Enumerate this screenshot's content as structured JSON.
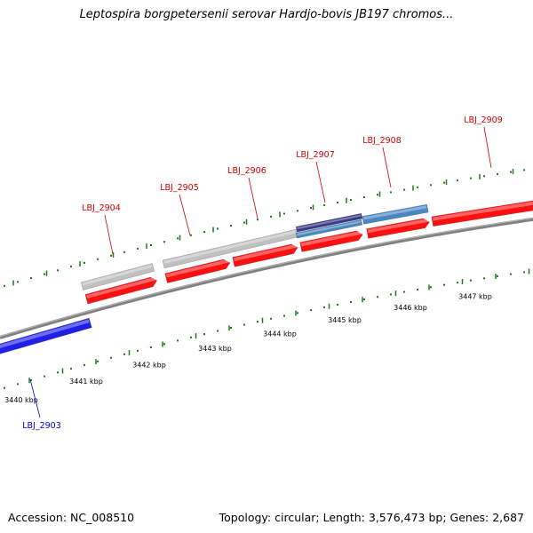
{
  "title": "Leptospira borgpetersenii serovar Hardjo-bovis JB197 chromos...",
  "footer": {
    "accession": "Accession: NC_008510",
    "topology": "Topology: circular; Length: 3,576,473 bp; Genes: 2,687"
  },
  "colors": {
    "backbone": "#808080",
    "cds": "#ff1010",
    "gene_grey": "#c0c0c0",
    "gene_blue": "#4a86c0",
    "gene_purple": "#3c3a8a",
    "reverse_strand": "#1f1fe8",
    "label_forward": "#cc0000",
    "label_reverse": "#0000cc",
    "tick": "#1a7a1a"
  },
  "ticks": [
    {
      "label": "3440 kbp"
    },
    {
      "label": "3441 kbp"
    },
    {
      "label": "3442 kbp"
    },
    {
      "label": "3443 kbp"
    },
    {
      "label": "3444 kbp"
    },
    {
      "label": "3445 kbp"
    },
    {
      "label": "3446 kbp"
    },
    {
      "label": "3447 kbp"
    }
  ],
  "genes": [
    {
      "label": "LBJ_2903",
      "strand": "reverse"
    },
    {
      "label": "LBJ_2904",
      "strand": "forward"
    },
    {
      "label": "LBJ_2905",
      "strand": "forward"
    },
    {
      "label": "LBJ_2906",
      "strand": "forward"
    },
    {
      "label": "LBJ_2907",
      "strand": "forward"
    },
    {
      "label": "LBJ_2908",
      "strand": "forward"
    },
    {
      "label": "LBJ_2909",
      "strand": "forward"
    }
  ]
}
